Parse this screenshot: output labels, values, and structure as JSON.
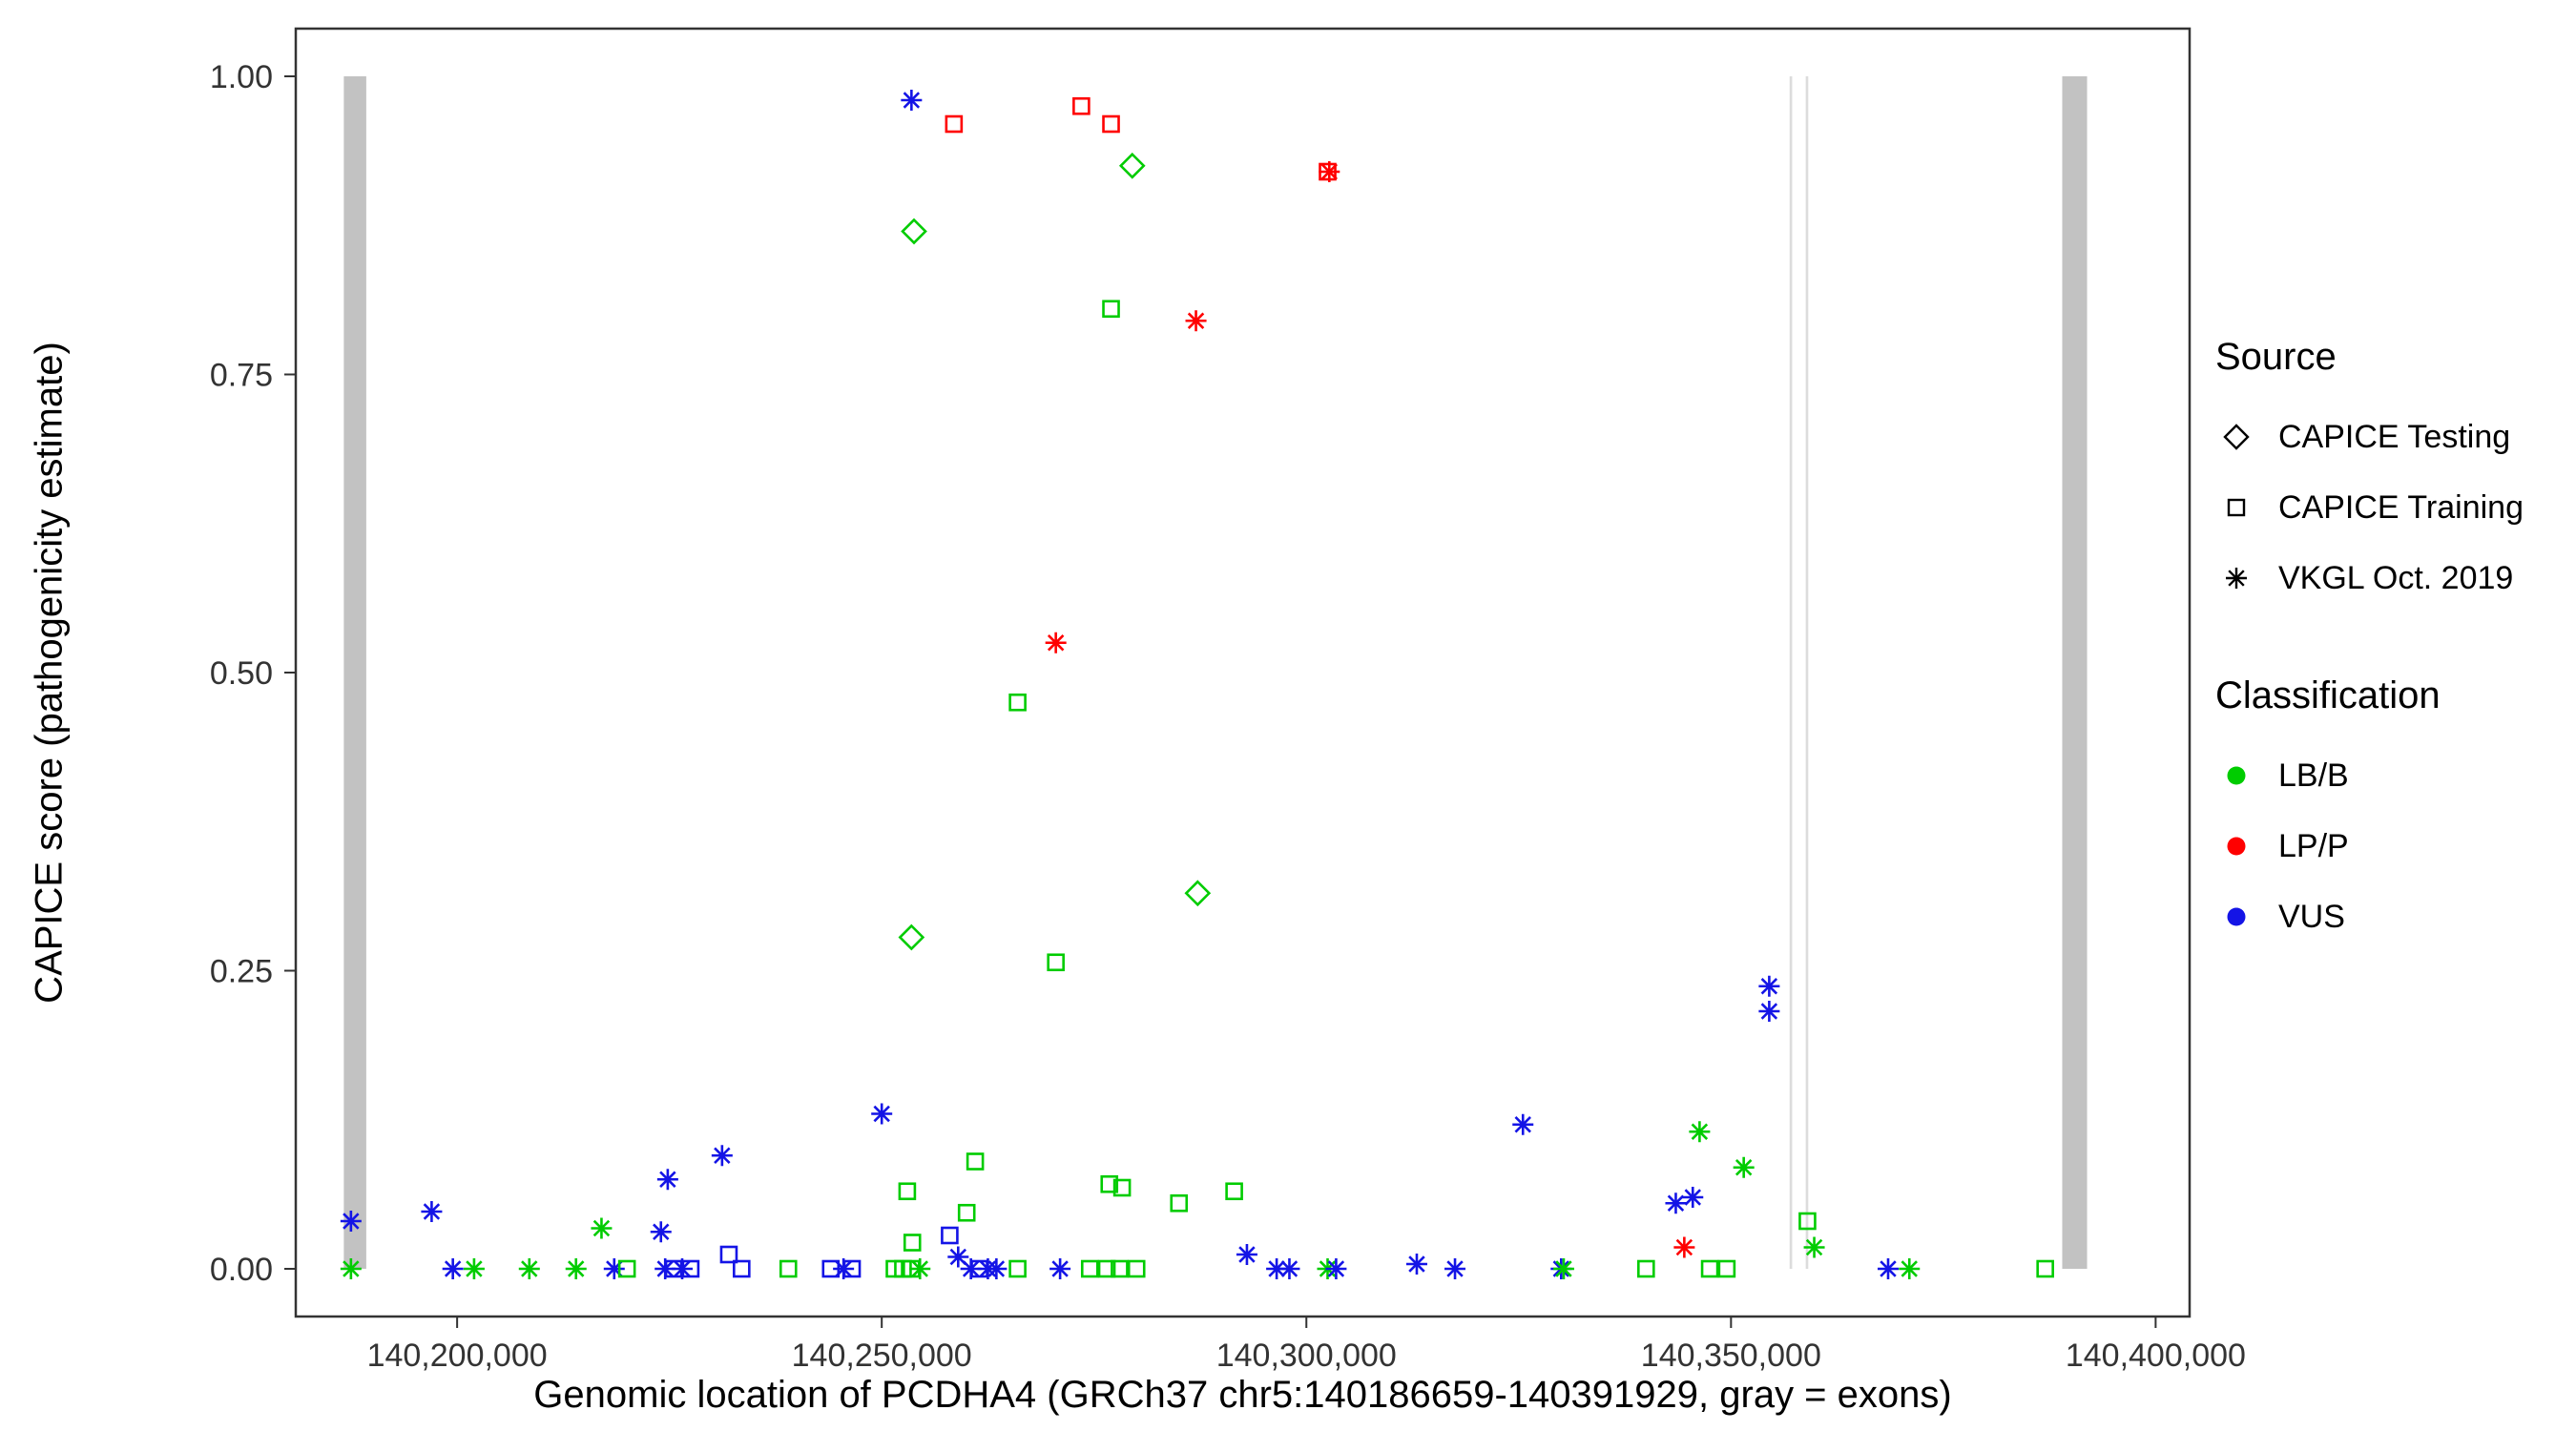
{
  "figure": {
    "legend": {
      "source": {
        "title": "Source",
        "items": [
          {
            "label": "CAPICE Testing",
            "shape": "diamond"
          },
          {
            "label": "CAPICE Training",
            "shape": "square"
          },
          {
            "label": "VKGL Oct. 2019",
            "shape": "asterisk"
          }
        ]
      },
      "classification": {
        "title": "Classification",
        "items": [
          {
            "label": "LB/B",
            "color": "#00CC00"
          },
          {
            "label": "LP/P",
            "color": "#FF0000"
          },
          {
            "label": "VUS",
            "color": "#1414E6"
          }
        ]
      }
    }
  },
  "chart_data": {
    "type": "scatter",
    "title": "",
    "xlabel": "Genomic location of PCDHA4 (GRCh37 chr5:140186659-140391929, gray = exons)",
    "ylabel": "CAPICE score (pathogenicity estimate)",
    "xlim": [
      140181000,
      140404000
    ],
    "ylim": [
      -0.04,
      1.04
    ],
    "grid": false,
    "legend_position": "right",
    "x_ticks": [
      {
        "value": 140200000,
        "label": "140,200,000"
      },
      {
        "value": 140250000,
        "label": "140,250,000"
      },
      {
        "value": 140300000,
        "label": "140,300,000"
      },
      {
        "value": 140350000,
        "label": "140,350,000"
      },
      {
        "value": 140400000,
        "label": "140,400,000"
      }
    ],
    "y_ticks": [
      {
        "value": 0.0,
        "label": "0.00"
      },
      {
        "value": 0.25,
        "label": "0.25"
      },
      {
        "value": 0.5,
        "label": "0.50"
      },
      {
        "value": 0.75,
        "label": "0.75"
      },
      {
        "value": 1.0,
        "label": "1.00"
      }
    ],
    "exon_color": "#C2C2C2",
    "exons": [
      {
        "start": 140186659,
        "end": 140189300
      },
      {
        "start": 140356900,
        "end": 140357200,
        "color": "#DCDCDC"
      },
      {
        "start": 140358800,
        "end": 140359100,
        "color": "#DCDCDC"
      },
      {
        "start": 140389000,
        "end": 140391929
      }
    ],
    "shape_map": {
      "testing": "diamond",
      "training": "square",
      "vkgl": "asterisk"
    },
    "color_map": {
      "LB/B": "#00CC00",
      "LP/P": "#FF0000",
      "VUS": "#1414E6"
    },
    "points_format": [
      "x",
      "y",
      "source",
      "classification"
    ],
    "points": [
      [
        140253500,
        0.98,
        "vkgl",
        "VUS"
      ],
      [
        140258500,
        0.96,
        "training",
        "LP/P"
      ],
      [
        140273500,
        0.975,
        "training",
        "LP/P"
      ],
      [
        140277000,
        0.96,
        "training",
        "LP/P"
      ],
      [
        140279500,
        0.925,
        "testing",
        "LB/B"
      ],
      [
        140302500,
        0.92,
        "training",
        "LP/P"
      ],
      [
        140302700,
        0.92,
        "vkgl",
        "LP/P"
      ],
      [
        140253800,
        0.87,
        "testing",
        "LB/B"
      ],
      [
        140277000,
        0.805,
        "training",
        "LB/B"
      ],
      [
        140287000,
        0.795,
        "vkgl",
        "LP/P"
      ],
      [
        140270500,
        0.525,
        "vkgl",
        "LP/P"
      ],
      [
        140266000,
        0.475,
        "training",
        "LB/B"
      ],
      [
        140287200,
        0.315,
        "testing",
        "LB/B"
      ],
      [
        140253500,
        0.278,
        "testing",
        "LB/B"
      ],
      [
        140270500,
        0.257,
        "training",
        "LB/B"
      ],
      [
        140354500,
        0.237,
        "vkgl",
        "VUS"
      ],
      [
        140354500,
        0.216,
        "vkgl",
        "VUS"
      ],
      [
        140250000,
        0.13,
        "vkgl",
        "VUS"
      ],
      [
        140325500,
        0.121,
        "vkgl",
        "VUS"
      ],
      [
        140346300,
        0.115,
        "vkgl",
        "LB/B"
      ],
      [
        140231200,
        0.095,
        "vkgl",
        "VUS"
      ],
      [
        140261000,
        0.09,
        "training",
        "LB/B"
      ],
      [
        140351500,
        0.085,
        "vkgl",
        "LB/B"
      ],
      [
        140224800,
        0.075,
        "vkgl",
        "VUS"
      ],
      [
        140276800,
        0.071,
        "training",
        "LB/B"
      ],
      [
        140278300,
        0.068,
        "training",
        "LB/B"
      ],
      [
        140253000,
        0.065,
        "training",
        "LB/B"
      ],
      [
        140291500,
        0.065,
        "training",
        "LB/B"
      ],
      [
        140345500,
        0.06,
        "vkgl",
        "VUS"
      ],
      [
        140343500,
        0.055,
        "vkgl",
        "VUS"
      ],
      [
        140285000,
        0.055,
        "training",
        "LB/B"
      ],
      [
        140197000,
        0.048,
        "vkgl",
        "VUS"
      ],
      [
        140260000,
        0.047,
        "training",
        "LB/B"
      ],
      [
        140187500,
        0.04,
        "vkgl",
        "VUS"
      ],
      [
        140359000,
        0.04,
        "training",
        "LB/B"
      ],
      [
        140217000,
        0.034,
        "vkgl",
        "LB/B"
      ],
      [
        140224000,
        0.031,
        "vkgl",
        "VUS"
      ],
      [
        140258000,
        0.028,
        "training",
        "VUS"
      ],
      [
        140253600,
        0.022,
        "training",
        "LB/B"
      ],
      [
        140344500,
        0.018,
        "vkgl",
        "LP/P"
      ],
      [
        140359800,
        0.018,
        "vkgl",
        "LB/B"
      ],
      [
        140232000,
        0.012,
        "training",
        "VUS"
      ],
      [
        140293000,
        0.012,
        "vkgl",
        "VUS"
      ],
      [
        140259000,
        0.01,
        "vkgl",
        "VUS"
      ],
      [
        140313000,
        0.004,
        "vkgl",
        "VUS"
      ],
      [
        140187500,
        0.0,
        "vkgl",
        "LB/B"
      ],
      [
        140199500,
        0.0,
        "vkgl",
        "VUS"
      ],
      [
        140202000,
        0.0,
        "vkgl",
        "LB/B"
      ],
      [
        140208500,
        0.0,
        "vkgl",
        "LB/B"
      ],
      [
        140214000,
        0.0,
        "vkgl",
        "LB/B"
      ],
      [
        140218500,
        0.0,
        "vkgl",
        "VUS"
      ],
      [
        140220000,
        0.0,
        "training",
        "LB/B"
      ],
      [
        140224500,
        0.0,
        "vkgl",
        "VUS"
      ],
      [
        140225500,
        0.0,
        "training",
        "VUS"
      ],
      [
        140226500,
        0.0,
        "vkgl",
        "VUS"
      ],
      [
        140227500,
        0.0,
        "training",
        "VUS"
      ],
      [
        140233500,
        0.0,
        "training",
        "VUS"
      ],
      [
        140239000,
        0.0,
        "training",
        "LB/B"
      ],
      [
        140244000,
        0.0,
        "training",
        "VUS"
      ],
      [
        140245500,
        0.0,
        "vkgl",
        "VUS"
      ],
      [
        140246500,
        0.0,
        "training",
        "VUS"
      ],
      [
        140251500,
        0.0,
        "training",
        "LB/B"
      ],
      [
        140252500,
        0.0,
        "training",
        "LB/B"
      ],
      [
        140253500,
        0.0,
        "training",
        "LB/B"
      ],
      [
        140254500,
        0.0,
        "vkgl",
        "LB/B"
      ],
      [
        140260500,
        0.0,
        "vkgl",
        "VUS"
      ],
      [
        140261500,
        0.0,
        "training",
        "VUS"
      ],
      [
        140262500,
        0.0,
        "vkgl",
        "VUS"
      ],
      [
        140263500,
        0.0,
        "vkgl",
        "VUS"
      ],
      [
        140266000,
        0.0,
        "training",
        "LB/B"
      ],
      [
        140271000,
        0.0,
        "vkgl",
        "VUS"
      ],
      [
        140274500,
        0.0,
        "training",
        "LB/B"
      ],
      [
        140276500,
        0.0,
        "training",
        "LB/B"
      ],
      [
        140278000,
        0.0,
        "training",
        "LB/B"
      ],
      [
        140280000,
        0.0,
        "training",
        "LB/B"
      ],
      [
        140296500,
        0.0,
        "vkgl",
        "VUS"
      ],
      [
        140298000,
        0.0,
        "vkgl",
        "VUS"
      ],
      [
        140302500,
        0.0,
        "vkgl",
        "LB/B"
      ],
      [
        140303500,
        0.0,
        "vkgl",
        "VUS"
      ],
      [
        140317500,
        0.0,
        "vkgl",
        "VUS"
      ],
      [
        140330000,
        0.0,
        "vkgl",
        "VUS"
      ],
      [
        140330300,
        0.0,
        "vkgl",
        "LB/B"
      ],
      [
        140340000,
        0.0,
        "training",
        "LB/B"
      ],
      [
        140347500,
        0.0,
        "training",
        "LB/B"
      ],
      [
        140349500,
        0.0,
        "training",
        "LB/B"
      ],
      [
        140368500,
        0.0,
        "vkgl",
        "VUS"
      ],
      [
        140371000,
        0.0,
        "vkgl",
        "LB/B"
      ],
      [
        140387000,
        0.0,
        "training",
        "LB/B"
      ]
    ]
  }
}
